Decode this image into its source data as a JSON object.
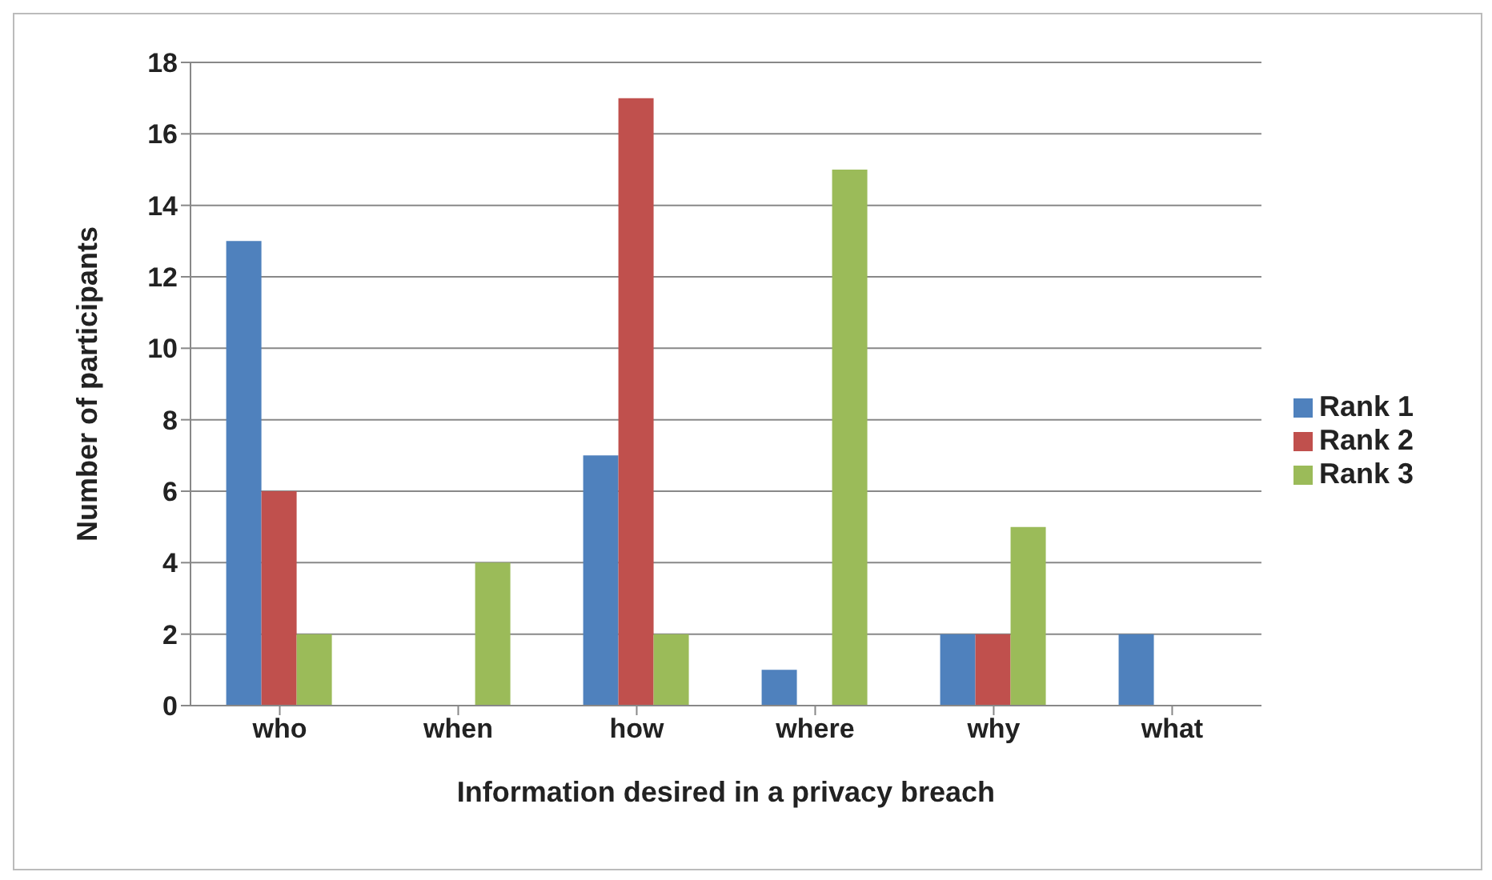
{
  "chart_data": {
    "type": "bar",
    "xlabel": "Information desired in a privacy breach",
    "ylabel": "Number of participants",
    "categories": [
      "who",
      "when",
      "how",
      "where",
      "why",
      "what"
    ],
    "series": [
      {
        "name": "Rank 1",
        "color": "#4f81bd",
        "values": [
          13,
          0,
          7,
          1,
          2,
          2
        ]
      },
      {
        "name": "Rank 2",
        "color": "#c0504d",
        "values": [
          6,
          0,
          17,
          0,
          2,
          0
        ]
      },
      {
        "name": "Rank 3",
        "color": "#9bbb59",
        "values": [
          2,
          4,
          2,
          15,
          5,
          0
        ]
      }
    ],
    "ylim": [
      0,
      18
    ],
    "yticks": [
      0,
      2,
      4,
      6,
      8,
      10,
      12,
      14,
      16,
      18
    ],
    "grid": "y",
    "legend": "right"
  }
}
